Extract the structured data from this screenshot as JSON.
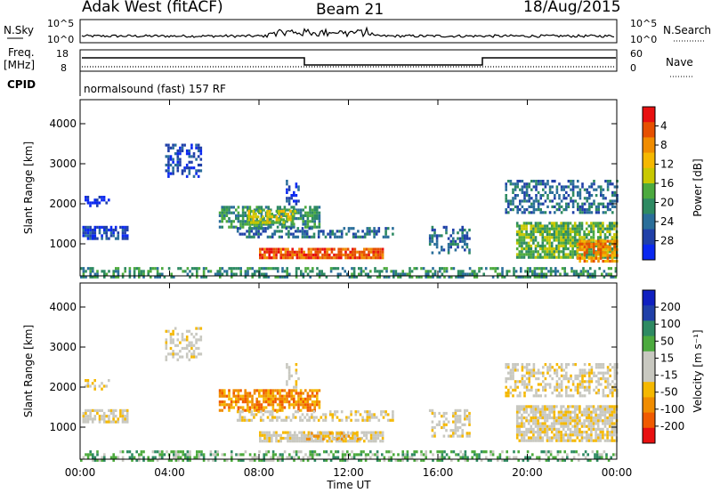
{
  "header": {
    "station": "Adak West (fitACF)",
    "beam": "Beam 21",
    "date": "18/Aug/2015"
  },
  "nsky_panel": {
    "left_label": "N.Sky",
    "right_label": "N.Search",
    "left_ticks": [
      "10^5",
      "10^0"
    ],
    "right_ticks": [
      "10^5",
      "10^0"
    ]
  },
  "freq_panel": {
    "left_label": "Freq.",
    "left_unit": "[MHz]",
    "right_label": "Nave",
    "left_ticks": [
      "18",
      "8"
    ],
    "right_ticks": [
      "60",
      "0"
    ]
  },
  "cpid": {
    "label": "CPID",
    "program": "normalsound (fast) 157 RF"
  },
  "colors": {
    "power_scale": [
      "#0a28f0",
      "#2040a8",
      "#2a6e9a",
      "#2e8a62",
      "#4caa3e",
      "#c8c800",
      "#f5b800",
      "#f08c00",
      "#e65000",
      "#e81010"
    ],
    "velocity_scale": [
      "#e81010",
      "#f05a00",
      "#f08c00",
      "#f5b800",
      "#c8c8c0",
      "#c8c8c0",
      "#4caa3e",
      "#2e8a62",
      "#2040a8",
      "#1020c0"
    ]
  },
  "chart_data": [
    {
      "type": "heatmap",
      "panel": "power",
      "ylabel": "Slant Range [km]",
      "ylim": [
        200,
        4600
      ],
      "yticks": [
        "1000",
        "2000",
        "3000",
        "4000"
      ],
      "xlim_hours": [
        0,
        24
      ],
      "colorbar_label": "Power [dB]",
      "colorbar_ticks": [
        "4",
        "8",
        "12",
        "16",
        "20",
        "24",
        "28"
      ],
      "regions": [
        {
          "t0": 0.0,
          "t1": 24.0,
          "r0": 200,
          "r1": 420,
          "level": 3,
          "density": 0.45
        },
        {
          "t0": 0.1,
          "t1": 2.1,
          "r0": 1100,
          "r1": 1450,
          "level": 1,
          "density": 0.75
        },
        {
          "t0": 0.2,
          "t1": 1.4,
          "r0": 1950,
          "r1": 2200,
          "level": 0,
          "density": 0.35
        },
        {
          "t0": 3.8,
          "t1": 5.4,
          "r0": 2700,
          "r1": 3500,
          "level": 1,
          "density": 0.45
        },
        {
          "t0": 6.2,
          "t1": 10.7,
          "r0": 1400,
          "r1": 1950,
          "level": 3,
          "density": 0.7
        },
        {
          "t0": 7.5,
          "t1": 9.6,
          "r0": 1500,
          "r1": 1850,
          "level": 5,
          "density": 0.55
        },
        {
          "t0": 7.0,
          "t1": 14.0,
          "r0": 1150,
          "r1": 1420,
          "level": 2,
          "density": 0.5
        },
        {
          "t0": 8.0,
          "t1": 13.5,
          "r0": 650,
          "r1": 900,
          "level": 8,
          "density": 0.85
        },
        {
          "t0": 9.2,
          "t1": 9.8,
          "r0": 2000,
          "r1": 2600,
          "level": 1,
          "density": 0.3
        },
        {
          "t0": 15.6,
          "t1": 17.4,
          "r0": 750,
          "r1": 1450,
          "level": 2,
          "density": 0.4
        },
        {
          "t0": 19.0,
          "t1": 24.0,
          "r0": 1800,
          "r1": 2600,
          "level": 2,
          "density": 0.5
        },
        {
          "t0": 19.5,
          "t1": 24.0,
          "r0": 650,
          "r1": 1550,
          "level": 4,
          "density": 0.8
        },
        {
          "t0": 22.2,
          "t1": 24.0,
          "r0": 600,
          "r1": 1100,
          "level": 7,
          "density": 0.7
        }
      ]
    },
    {
      "type": "heatmap",
      "panel": "velocity",
      "ylabel": "Slant Range [km]",
      "ylim": [
        200,
        4600
      ],
      "yticks": [
        "1000",
        "2000",
        "3000",
        "4000"
      ],
      "xlim_hours": [
        0,
        24
      ],
      "xticks": [
        "00:00",
        "04:00",
        "08:00",
        "12:00",
        "16:00",
        "20:00",
        "00:00"
      ],
      "xlabel": "Time UT",
      "colorbar_label": "Velocity [m s⁻¹]",
      "colorbar_ticks": [
        "200",
        "100",
        "50",
        "15",
        "-15",
        "-50",
        "-100",
        "-200"
      ],
      "regions": [
        {
          "t0": 0.0,
          "t1": 24.0,
          "r0": 200,
          "r1": 420,
          "level": 6,
          "density": 0.45
        },
        {
          "t0": 0.1,
          "t1": 2.1,
          "r0": 1100,
          "r1": 1450,
          "level": 4,
          "density": 0.75
        },
        {
          "t0": 0.2,
          "t1": 1.4,
          "r0": 1950,
          "r1": 2200,
          "level": 4,
          "density": 0.35
        },
        {
          "t0": 3.8,
          "t1": 5.4,
          "r0": 2700,
          "r1": 3500,
          "level": 4,
          "density": 0.45
        },
        {
          "t0": 6.2,
          "t1": 10.7,
          "r0": 1400,
          "r1": 1950,
          "level": 2,
          "density": 0.7
        },
        {
          "t0": 7.0,
          "t1": 14.0,
          "r0": 1150,
          "r1": 1420,
          "level": 4,
          "density": 0.5
        },
        {
          "t0": 8.0,
          "t1": 13.5,
          "r0": 650,
          "r1": 900,
          "level": 4,
          "density": 0.85
        },
        {
          "t0": 10.0,
          "t1": 12.5,
          "r0": 700,
          "r1": 880,
          "level": 3,
          "density": 0.5
        },
        {
          "t0": 9.2,
          "t1": 9.8,
          "r0": 2000,
          "r1": 2600,
          "level": 4,
          "density": 0.3
        },
        {
          "t0": 15.6,
          "t1": 17.4,
          "r0": 750,
          "r1": 1450,
          "level": 4,
          "density": 0.4
        },
        {
          "t0": 19.0,
          "t1": 24.0,
          "r0": 1800,
          "r1": 2600,
          "level": 4,
          "density": 0.5
        },
        {
          "t0": 19.5,
          "t1": 24.0,
          "r0": 650,
          "r1": 1550,
          "level": 4,
          "density": 0.8
        }
      ]
    }
  ]
}
